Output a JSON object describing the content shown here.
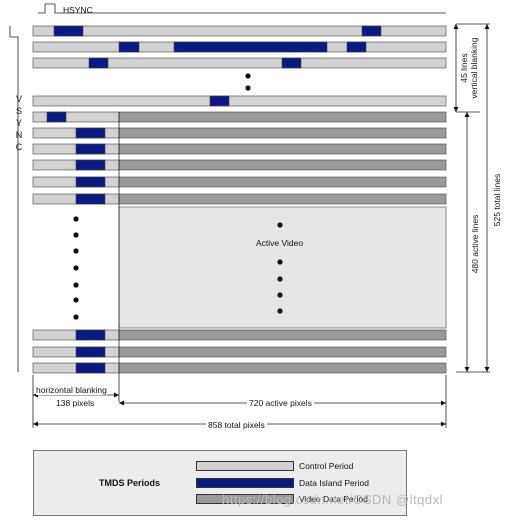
{
  "diagram": {
    "hsync_label": "HSYNC",
    "vsync_letters": [
      "V",
      "S",
      "Y",
      "N",
      "C"
    ],
    "active_video_label": "Active Video",
    "vertical_blanking_label": "45 lines\nvertical blanking",
    "active_lines_label": "480 active lines",
    "total_lines_label": "525 total lines",
    "horizontal_blanking_label": "horizontal blanking",
    "blanking_pixels_label": "138 pixels",
    "active_pixels_label": "720 active pixels",
    "total_pixels_label": "858 total pixels"
  },
  "legend": {
    "title": "TMDS Periods",
    "items": [
      {
        "label": "Control Period",
        "color": "#d2d2d2"
      },
      {
        "label": "Data Island Period",
        "color": "#0b1a82"
      },
      {
        "label": "Video Data Period",
        "color": "#9a9a9a"
      }
    ]
  },
  "colors": {
    "control": "#d2d2d2",
    "data_island": "#0b1a82",
    "video": "#9a9a9a",
    "active_area": "#e6e6e6",
    "outline": "#444444"
  },
  "watermark": "https://blog.csdn.net/CSDN @ltqdxl"
}
